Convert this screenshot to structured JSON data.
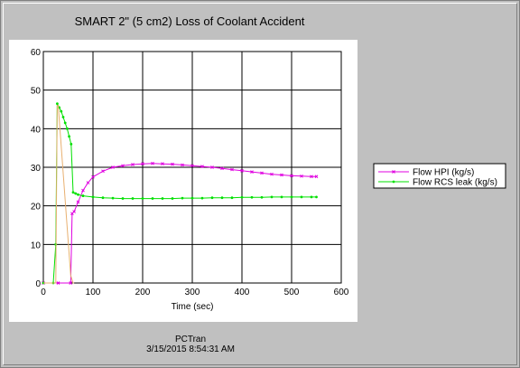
{
  "chart_data": {
    "type": "line",
    "title": "SMART 2\" (5 cm2) Loss of Coolant Accident",
    "xlabel": "Time (sec)",
    "ylabel": "",
    "xlim": [
      0,
      600
    ],
    "ylim": [
      0,
      60
    ],
    "xticks": [
      0,
      100,
      200,
      300,
      400,
      500,
      600
    ],
    "yticks": [
      0,
      10,
      20,
      30,
      40,
      50,
      60
    ],
    "grid": true,
    "legend_position": "right",
    "series": [
      {
        "name": "Flow HPI (kg/s)",
        "color": "#e000e0",
        "marker": "x",
        "x": [
          0,
          30,
          55,
          58,
          62,
          70,
          80,
          90,
          100,
          120,
          140,
          160,
          180,
          200,
          220,
          240,
          260,
          280,
          300,
          320,
          340,
          360,
          380,
          400,
          420,
          440,
          460,
          480,
          500,
          520,
          540,
          550
        ],
        "y": [
          0,
          0,
          0,
          18,
          18.5,
          21,
          24,
          26,
          27.5,
          29,
          30,
          30.4,
          30.7,
          30.9,
          31,
          30.9,
          30.8,
          30.6,
          30.4,
          30.2,
          30,
          29.7,
          29.4,
          29.1,
          28.8,
          28.5,
          28.2,
          28,
          27.8,
          27.7,
          27.6,
          27.6
        ]
      },
      {
        "name": "Flow RCS leak (kg/s)",
        "color": "#00e000",
        "marker": "o",
        "x": [
          0,
          20,
          25,
          28,
          32,
          36,
          40,
          44,
          48,
          52,
          56,
          60,
          65,
          70,
          80,
          100,
          120,
          140,
          160,
          180,
          200,
          220,
          240,
          260,
          280,
          300,
          320,
          340,
          360,
          380,
          400,
          420,
          440,
          460,
          480,
          500,
          520,
          540,
          550
        ],
        "y": [
          0,
          0,
          10,
          46.5,
          45.5,
          44.5,
          43,
          41.5,
          40,
          38,
          36,
          23.5,
          23.2,
          22.9,
          22.6,
          22.3,
          22.1,
          22,
          21.9,
          21.9,
          21.9,
          21.9,
          21.9,
          21.9,
          22,
          22,
          22,
          22.1,
          22.1,
          22.1,
          22.2,
          22.2,
          22.2,
          22.3,
          22.3,
          22.3,
          22.3,
          22.3,
          22.3
        ]
      },
      {
        "name": "",
        "color": "#e8b070",
        "marker": "none",
        "x": [
          0,
          25,
          28,
          30,
          55,
          60,
          62
        ],
        "y": [
          0,
          0,
          46,
          46,
          2,
          0,
          0
        ]
      }
    ]
  },
  "footer": {
    "app": "PCTran",
    "timestamp": "3/15/2015 8:54:31 AM"
  }
}
